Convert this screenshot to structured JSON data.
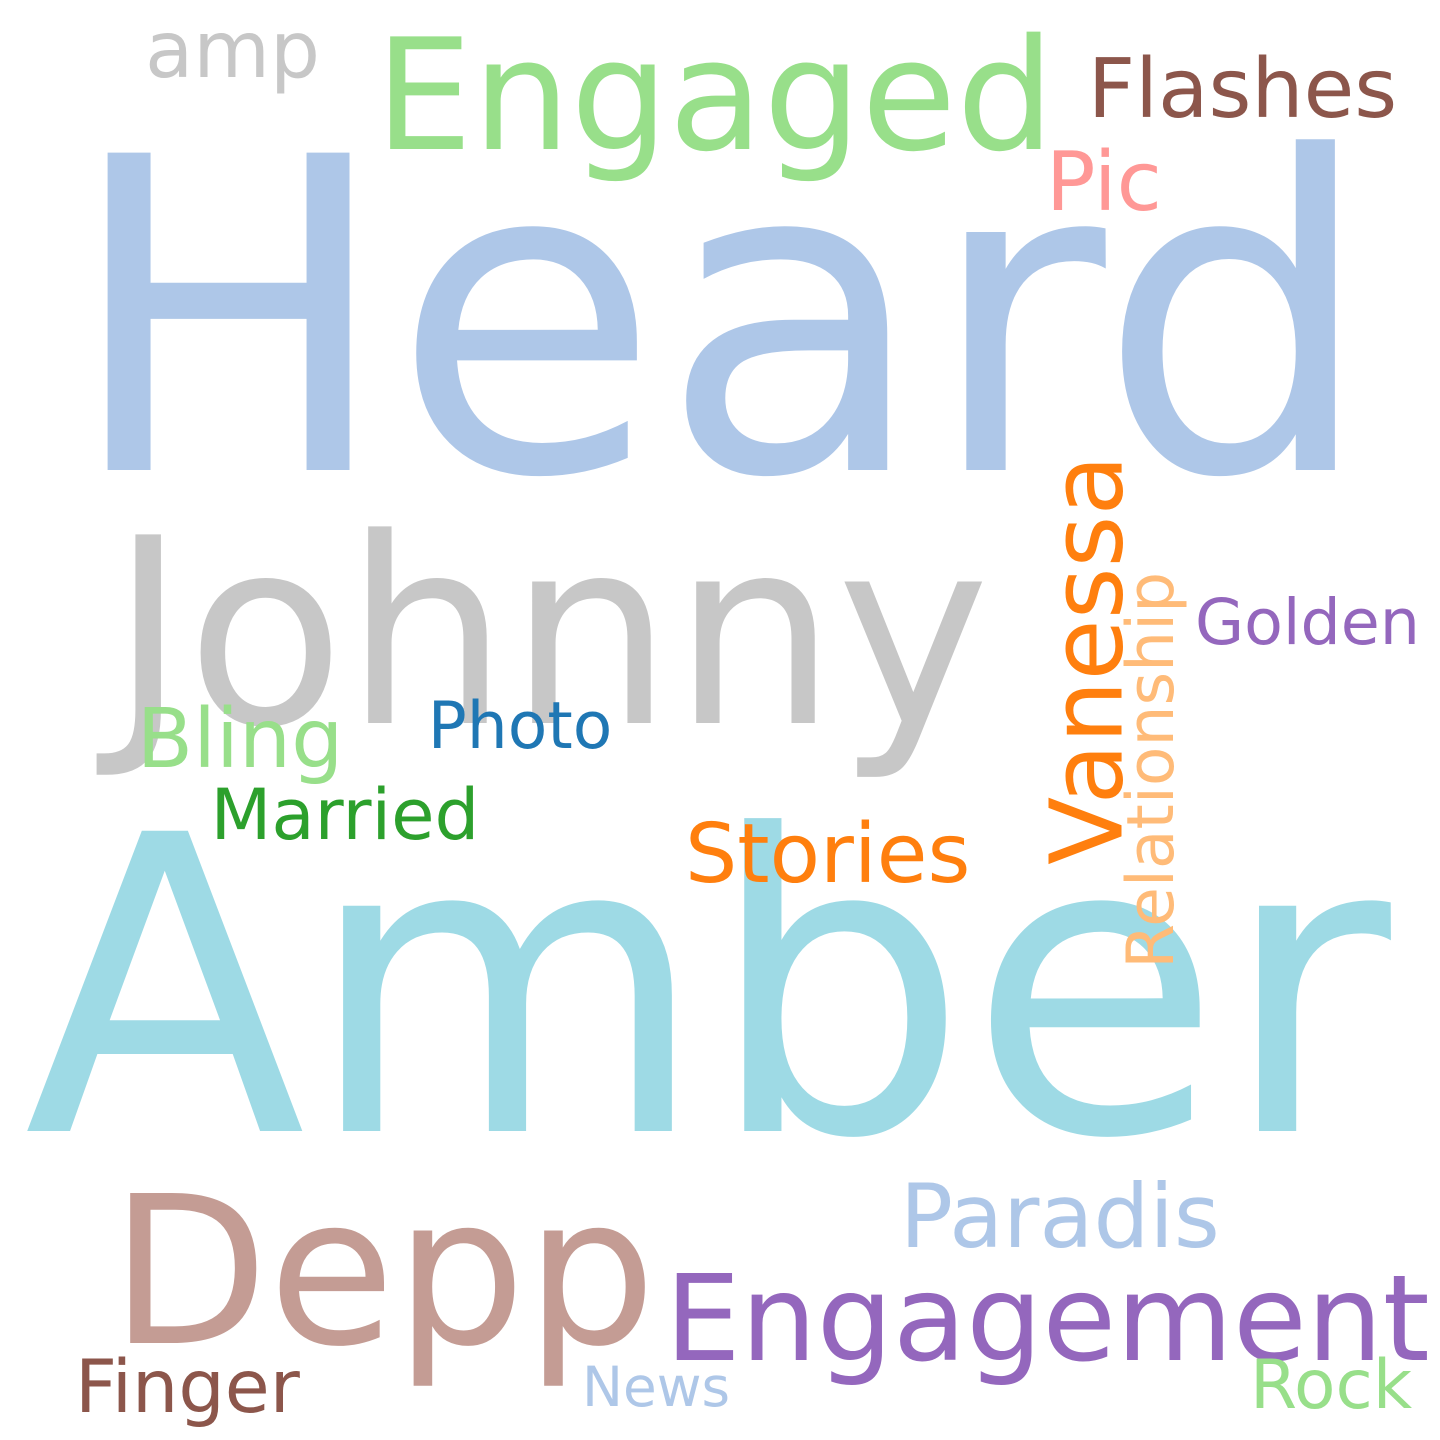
{
  "words": [
    {
      "key": "heard",
      "text": "Heard",
      "color": "#aec7e8"
    },
    {
      "key": "amber",
      "text": "Amber",
      "color": "#9edae5"
    },
    {
      "key": "johnny",
      "text": "Johnny",
      "color": "#c7c7c7"
    },
    {
      "key": "engaged",
      "text": "Engaged",
      "color": "#98df8a"
    },
    {
      "key": "depp",
      "text": "Depp",
      "color": "#c49c94"
    },
    {
      "key": "engagement",
      "text": "Engagement",
      "color": "#9467bd"
    },
    {
      "key": "vanessa",
      "text": "Vanessa",
      "color": "#ff7f0e"
    },
    {
      "key": "paradis",
      "text": "Paradis",
      "color": "#aec7e8"
    },
    {
      "key": "amp",
      "text": "amp",
      "color": "#c7c7c7"
    },
    {
      "key": "flashes",
      "text": "Flashes",
      "color": "#8c564b"
    },
    {
      "key": "stories",
      "text": "Stories",
      "color": "#ff7f0e"
    },
    {
      "key": "relationship",
      "text": "Relationship",
      "color": "#ffbb78"
    },
    {
      "key": "pic",
      "text": "Pic",
      "color": "#ff9896"
    },
    {
      "key": "golden",
      "text": "Golden",
      "color": "#9467bd"
    },
    {
      "key": "photo",
      "text": "Photo",
      "color": "#1f77b4"
    },
    {
      "key": "bling",
      "text": "Bling",
      "color": "#98df8a"
    },
    {
      "key": "married",
      "text": "Married",
      "color": "#2ca02c"
    },
    {
      "key": "finger",
      "text": "Finger",
      "color": "#8c564b"
    },
    {
      "key": "news",
      "text": "News",
      "color": "#aec7e8"
    },
    {
      "key": "rock",
      "text": "Rock",
      "color": "#98df8a"
    }
  ]
}
